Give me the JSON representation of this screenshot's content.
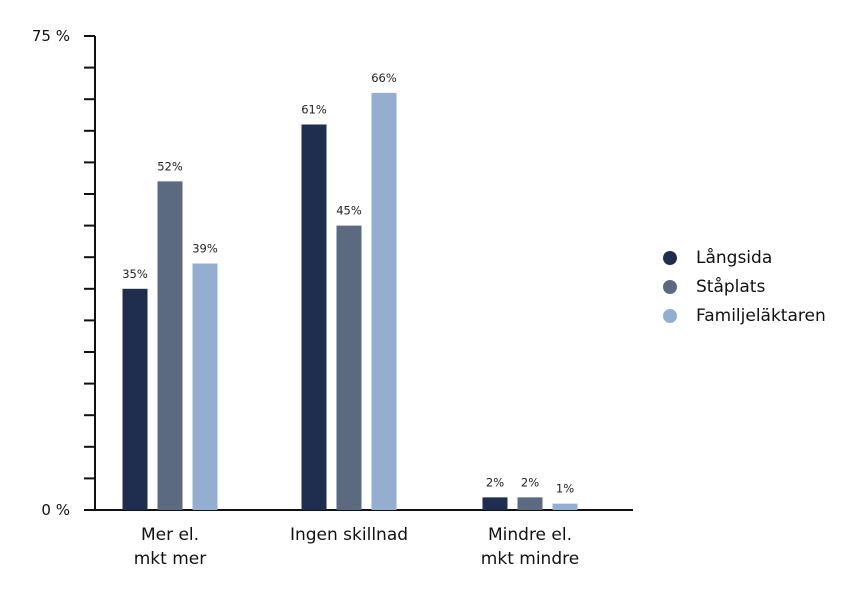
{
  "chart_data": {
    "type": "bar",
    "categories": [
      [
        "Mer el.",
        "mkt mer"
      ],
      [
        "Ingen skillnad"
      ],
      [
        "Mindre el.",
        "mkt mindre"
      ]
    ],
    "series": [
      {
        "name": "Långsida",
        "values": [
          35,
          61,
          2
        ],
        "labels": [
          "35%",
          "61%",
          "2%"
        ],
        "color": "#1f2e4f"
      },
      {
        "name": "Ståplats",
        "values": [
          52,
          45,
          2
        ],
        "labels": [
          "52%",
          "45%",
          "2%"
        ],
        "color": "#5b6a80"
      },
      {
        "name": "Familjeläktaren",
        "values": [
          39,
          66,
          1
        ],
        "labels": [
          "39%",
          "66%",
          "1%"
        ],
        "color": "#93aece"
      }
    ],
    "ylim": [
      0,
      75
    ],
    "ytick_labels": {
      "min": "0 %",
      "max": "75 %"
    },
    "minor_tick_step": 5,
    "legend_position": "right",
    "grid": false
  }
}
